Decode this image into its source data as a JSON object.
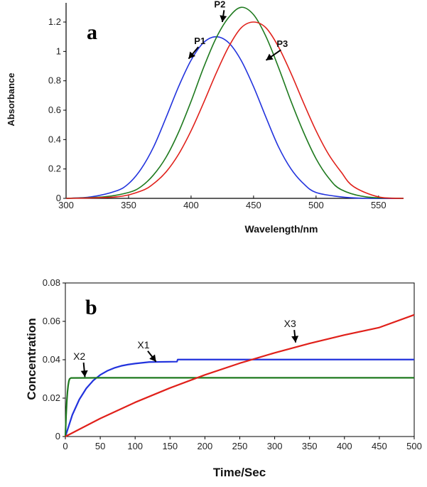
{
  "chart_data": [
    {
      "type": "line",
      "panel_label": "a",
      "xlabel": "Wavelength/nm",
      "ylabel": "Absorbance",
      "xlim": [
        300,
        570
      ],
      "ylim": [
        0,
        1.35
      ],
      "xticks": [
        300,
        350,
        400,
        450,
        500,
        550
      ],
      "yticks": [
        0,
        0.2,
        0.4,
        0.6,
        0.8,
        1,
        1.2
      ],
      "ytick_labels": [
        "0",
        "0.2",
        "0.4",
        "0.6",
        "0.8",
        "1",
        "1.2"
      ],
      "grid": false,
      "series": [
        {
          "name": "P1",
          "color": "#2233dd",
          "x": [
            300,
            320,
            340,
            350,
            360,
            370,
            380,
            390,
            400,
            410,
            420,
            430,
            440,
            450,
            460,
            470,
            480,
            490,
            500,
            520,
            540,
            570
          ],
          "y": [
            0.0,
            0.01,
            0.05,
            0.1,
            0.2,
            0.35,
            0.55,
            0.76,
            0.94,
            1.06,
            1.1,
            1.06,
            0.94,
            0.76,
            0.55,
            0.35,
            0.2,
            0.1,
            0.04,
            0.01,
            0.0,
            0.0
          ]
        },
        {
          "name": "P2",
          "color": "#1f7a1f",
          "x": [
            300,
            330,
            350,
            360,
            370,
            380,
            390,
            400,
            410,
            420,
            430,
            440,
            450,
            460,
            470,
            480,
            490,
            500,
            510,
            520,
            540,
            570
          ],
          "y": [
            0.0,
            0.01,
            0.04,
            0.08,
            0.16,
            0.28,
            0.45,
            0.66,
            0.89,
            1.09,
            1.23,
            1.3,
            1.25,
            1.1,
            0.89,
            0.66,
            0.45,
            0.27,
            0.14,
            0.06,
            0.01,
            0.0
          ]
        },
        {
          "name": "P3",
          "color": "#e0201a",
          "x": [
            300,
            340,
            360,
            370,
            380,
            390,
            400,
            410,
            420,
            430,
            440,
            450,
            460,
            470,
            480,
            490,
            500,
            510,
            520,
            530,
            550,
            570
          ],
          "y": [
            0.0,
            0.01,
            0.05,
            0.1,
            0.18,
            0.3,
            0.46,
            0.65,
            0.85,
            1.03,
            1.16,
            1.2,
            1.16,
            1.03,
            0.85,
            0.65,
            0.46,
            0.3,
            0.18,
            0.08,
            0.01,
            0.0
          ]
        }
      ],
      "annotations": [
        {
          "text": "P1",
          "x": 407,
          "y": 1.05,
          "target_x": 398,
          "target_y": 0.95
        },
        {
          "text": "P2",
          "x": 423,
          "y": 1.3,
          "target_x": 425,
          "target_y": 1.2
        },
        {
          "text": "P3",
          "x": 473,
          "y": 1.03,
          "target_x": 460,
          "target_y": 0.94
        }
      ]
    },
    {
      "type": "line",
      "panel_label": "b",
      "xlabel": "Time/Sec",
      "ylabel": "Concentration",
      "xlim": [
        0,
        500
      ],
      "ylim": [
        0,
        0.08
      ],
      "xticks": [
        0,
        50,
        100,
        150,
        200,
        250,
        300,
        350,
        400,
        450,
        500
      ],
      "yticks": [
        0,
        0.02,
        0.04,
        0.06,
        0.08
      ],
      "ytick_labels": [
        "0",
        "0.02",
        "0.04",
        "0.06",
        "0.08"
      ],
      "grid": false,
      "series": [
        {
          "name": "X1",
          "color": "#2233dd",
          "x": [
            0,
            10,
            20,
            30,
            40,
            50,
            60,
            70,
            80,
            90,
            100,
            120,
            160,
            161,
            200,
            300,
            400,
            500
          ],
          "y": [
            0.0,
            0.0113,
            0.0193,
            0.0251,
            0.0292,
            0.0321,
            0.0342,
            0.0357,
            0.0368,
            0.0375,
            0.038,
            0.0388,
            0.039,
            0.0401,
            0.0401,
            0.0401,
            0.0401,
            0.0401
          ]
        },
        {
          "name": "X2",
          "color": "#1f7a1f",
          "x": [
            0,
            1,
            2,
            3,
            4,
            5,
            6,
            8,
            50,
            100,
            200,
            300,
            400,
            500
          ],
          "y": [
            0.0,
            0.0106,
            0.018,
            0.0232,
            0.0266,
            0.0288,
            0.03,
            0.0305,
            0.0306,
            0.0306,
            0.0306,
            0.0306,
            0.0306,
            0.0306
          ]
        },
        {
          "name": "X3",
          "color": "#e0201a",
          "x": [
            0,
            50,
            100,
            150,
            200,
            250,
            300,
            350,
            400,
            450,
            500
          ],
          "y": [
            0.0,
            0.0094,
            0.0178,
            0.0253,
            0.0321,
            0.0382,
            0.0436,
            0.0485,
            0.0529,
            0.0568,
            0.0634
          ]
        }
      ],
      "annotations": [
        {
          "text": "X1",
          "x": 112,
          "y": 0.046,
          "target_x": 130,
          "target_y": 0.039
        },
        {
          "text": "X2",
          "x": 20,
          "y": 0.04,
          "target_x": 28,
          "target_y": 0.031
        },
        {
          "text": "X3",
          "x": 322,
          "y": 0.057,
          "target_x": 330,
          "target_y": 0.049
        }
      ]
    }
  ]
}
